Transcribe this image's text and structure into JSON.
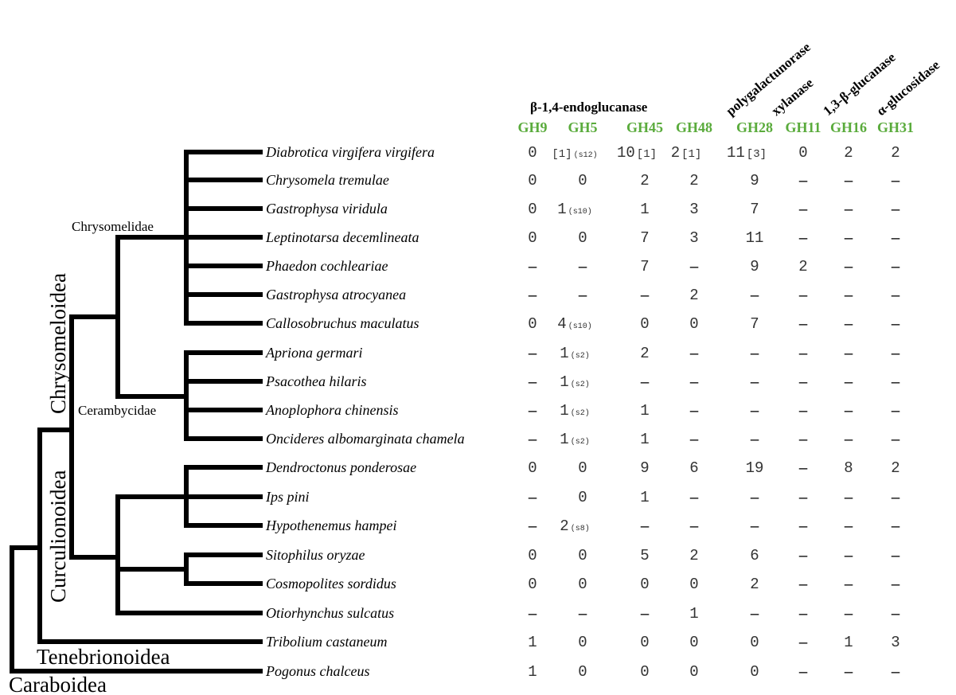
{
  "enzymes": {
    "endoglucanase": "β-1,4-endoglucanase",
    "polygalacturonase": "polygalactunorase",
    "xylanase": "xylanase",
    "glucanase": "1,3-β-glucanase",
    "glucosidase": "α-glucosidase"
  },
  "families": [
    "GH9",
    "GH5",
    "GH45",
    "GH48",
    "GH28",
    "GH11",
    "GH16",
    "GH31"
  ],
  "colors": {
    "family_label": "#5aab3c",
    "tree": "#000000"
  },
  "clades": {
    "chrysomelidae": "Chrysomelidae",
    "cerambycidae": "Cerambycidae",
    "chrysomeloidea": "Chrysomeloidea",
    "curculionoidea": "Curculionoidea",
    "tenebrionoidea": "Tenebrionoidea",
    "caraboidea": "Caraboidea"
  },
  "dash_symbol": "–",
  "rows": [
    {
      "species": "Diabrotica virgifera virgifera",
      "cells": [
        {
          "v": "0"
        },
        {
          "v": "",
          "pre": "[1]",
          "note": "(s12)"
        },
        {
          "v": "10",
          "note": "[1]"
        },
        {
          "v": "2",
          "note": "[1]"
        },
        {
          "v": "11",
          "note": "[3]"
        },
        {
          "v": "0"
        },
        {
          "v": "2"
        },
        {
          "v": "2"
        }
      ]
    },
    {
      "species": "Chrysomela tremulae",
      "cells": [
        {
          "v": "0"
        },
        {
          "v": "0"
        },
        {
          "v": "2"
        },
        {
          "v": "2"
        },
        {
          "v": "9"
        },
        {
          "v": "–"
        },
        {
          "v": "–"
        },
        {
          "v": "–"
        }
      ]
    },
    {
      "species": "Gastrophysa viridula",
      "cells": [
        {
          "v": "0"
        },
        {
          "v": "1",
          "note": "(s10)"
        },
        {
          "v": "1"
        },
        {
          "v": "3"
        },
        {
          "v": "7"
        },
        {
          "v": "–"
        },
        {
          "v": "–"
        },
        {
          "v": "–"
        }
      ]
    },
    {
      "species": "Leptinotarsa decemlineata",
      "cells": [
        {
          "v": "0"
        },
        {
          "v": "0"
        },
        {
          "v": "7"
        },
        {
          "v": "3"
        },
        {
          "v": "11"
        },
        {
          "v": "–"
        },
        {
          "v": "–"
        },
        {
          "v": "–"
        }
      ]
    },
    {
      "species": "Phaedon cochleariae",
      "cells": [
        {
          "v": "–"
        },
        {
          "v": "–"
        },
        {
          "v": "7"
        },
        {
          "v": "–"
        },
        {
          "v": "9"
        },
        {
          "v": "2"
        },
        {
          "v": "–"
        },
        {
          "v": "–"
        }
      ]
    },
    {
      "species": "Gastrophysa atrocyanea",
      "cells": [
        {
          "v": "–"
        },
        {
          "v": "–"
        },
        {
          "v": "–"
        },
        {
          "v": "2"
        },
        {
          "v": "–"
        },
        {
          "v": "–"
        },
        {
          "v": "–"
        },
        {
          "v": "–"
        }
      ]
    },
    {
      "species": "Callosobruchus maculatus",
      "cells": [
        {
          "v": "0"
        },
        {
          "v": "4",
          "note": "(s10)"
        },
        {
          "v": "0"
        },
        {
          "v": "0"
        },
        {
          "v": "7"
        },
        {
          "v": "–"
        },
        {
          "v": "–"
        },
        {
          "v": "–"
        }
      ]
    },
    {
      "species": "Apriona germari",
      "cells": [
        {
          "v": "–"
        },
        {
          "v": "1",
          "note": "(s2)"
        },
        {
          "v": "2"
        },
        {
          "v": "–"
        },
        {
          "v": "–"
        },
        {
          "v": "–"
        },
        {
          "v": "–"
        },
        {
          "v": "–"
        }
      ]
    },
    {
      "species": "Psacothea hilaris",
      "cells": [
        {
          "v": "–"
        },
        {
          "v": "1",
          "note": "(s2)"
        },
        {
          "v": "–"
        },
        {
          "v": "–"
        },
        {
          "v": "–"
        },
        {
          "v": "–"
        },
        {
          "v": "–"
        },
        {
          "v": "–"
        }
      ]
    },
    {
      "species": "Anoplophora chinensis",
      "cells": [
        {
          "v": "–"
        },
        {
          "v": "1",
          "note": "(s2)"
        },
        {
          "v": "1"
        },
        {
          "v": "–"
        },
        {
          "v": "–"
        },
        {
          "v": "–"
        },
        {
          "v": "–"
        },
        {
          "v": "–"
        }
      ]
    },
    {
      "species": "Oncideres albomarginata chamela",
      "cells": [
        {
          "v": "–"
        },
        {
          "v": "1",
          "note": "(s2)"
        },
        {
          "v": "1"
        },
        {
          "v": "–"
        },
        {
          "v": "–"
        },
        {
          "v": "–"
        },
        {
          "v": "–"
        },
        {
          "v": "–"
        }
      ]
    },
    {
      "species": "Dendroctonus ponderosae",
      "cells": [
        {
          "v": "0"
        },
        {
          "v": "0"
        },
        {
          "v": "9"
        },
        {
          "v": "6"
        },
        {
          "v": "19"
        },
        {
          "v": "–"
        },
        {
          "v": "8"
        },
        {
          "v": "2"
        }
      ]
    },
    {
      "species": "Ips pini",
      "cells": [
        {
          "v": "–"
        },
        {
          "v": "0"
        },
        {
          "v": "1"
        },
        {
          "v": "–"
        },
        {
          "v": "–"
        },
        {
          "v": "–"
        },
        {
          "v": "–"
        },
        {
          "v": "–"
        }
      ]
    },
    {
      "species": "Hypothenemus hampei",
      "cells": [
        {
          "v": "–"
        },
        {
          "v": "2",
          "note": "(s8)"
        },
        {
          "v": "–"
        },
        {
          "v": "–"
        },
        {
          "v": "–"
        },
        {
          "v": "–"
        },
        {
          "v": "–"
        },
        {
          "v": "–"
        }
      ]
    },
    {
      "species": "Sitophilus oryzae",
      "cells": [
        {
          "v": "0"
        },
        {
          "v": "0"
        },
        {
          "v": "5"
        },
        {
          "v": "2"
        },
        {
          "v": "6"
        },
        {
          "v": "–"
        },
        {
          "v": "–"
        },
        {
          "v": "–"
        }
      ]
    },
    {
      "species": "Cosmopolites sordidus",
      "cells": [
        {
          "v": "0"
        },
        {
          "v": "0"
        },
        {
          "v": "0"
        },
        {
          "v": "0"
        },
        {
          "v": "2"
        },
        {
          "v": "–"
        },
        {
          "v": "–"
        },
        {
          "v": "–"
        }
      ]
    },
    {
      "species": "Otiorhynchus sulcatus",
      "cells": [
        {
          "v": "–"
        },
        {
          "v": "–"
        },
        {
          "v": "–"
        },
        {
          "v": "1"
        },
        {
          "v": "–"
        },
        {
          "v": "–"
        },
        {
          "v": "–"
        },
        {
          "v": "–"
        }
      ]
    },
    {
      "species": "Tribolium castaneum",
      "cells": [
        {
          "v": "1"
        },
        {
          "v": "0"
        },
        {
          "v": "0"
        },
        {
          "v": "0"
        },
        {
          "v": "0"
        },
        {
          "v": "–"
        },
        {
          "v": "1"
        },
        {
          "v": "3"
        }
      ]
    },
    {
      "species": "Pogonus chalceus",
      "cells": [
        {
          "v": "1"
        },
        {
          "v": "0"
        },
        {
          "v": "0"
        },
        {
          "v": "0"
        },
        {
          "v": "0"
        },
        {
          "v": "–"
        },
        {
          "v": "–"
        },
        {
          "v": "–"
        }
      ]
    }
  ]
}
